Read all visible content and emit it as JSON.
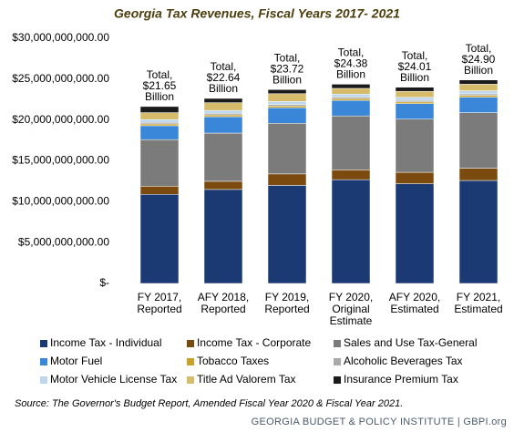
{
  "chart_data": {
    "type": "stacked-bar",
    "title": "Georgia Tax Revenues, Fiscal Years 2017- 2021",
    "categories": [
      [
        "FY 2017,",
        "Reported"
      ],
      [
        "AFY 2018,",
        "Reported"
      ],
      [
        "FY 2019,",
        "Reported"
      ],
      [
        "FY 2020,",
        "Original",
        "Estimate"
      ],
      [
        "AFY 2020,",
        "Estimated"
      ],
      [
        "FY 2021,",
        "Estimated"
      ]
    ],
    "series": [
      {
        "name": "Income Tax - Individual",
        "color": "#1b3a73",
        "values": [
          10900000000,
          11500000000,
          12000000000,
          12700000000,
          12200000000,
          12600000000
        ]
      },
      {
        "name": "Income Tax - Corporate",
        "color": "#7a4a0e",
        "values": [
          1000000000,
          1000000000,
          1400000000,
          1200000000,
          1400000000,
          1500000000
        ]
      },
      {
        "name": "Sales and Use Tax-General",
        "color": "#7b7b7b",
        "values": [
          5700000000,
          5900000000,
          6200000000,
          6600000000,
          6500000000,
          6800000000
        ]
      },
      {
        "name": "Motor Fuel",
        "color": "#3a86d8",
        "values": [
          1700000000,
          2000000000,
          1900000000,
          1900000000,
          1900000000,
          1900000000
        ]
      },
      {
        "name": "Tobacco Taxes",
        "color": "#c9a227",
        "values": [
          220000000,
          220000000,
          210000000,
          210000000,
          210000000,
          210000000
        ]
      },
      {
        "name": "Alcoholic Beverages Tax",
        "color": "#a9a9a9",
        "values": [
          190000000,
          200000000,
          200000000,
          200000000,
          200000000,
          200000000
        ]
      },
      {
        "name": "Motor Vehicle License Tax",
        "color": "#bdd7ee",
        "values": [
          340000000,
          350000000,
          360000000,
          360000000,
          360000000,
          370000000
        ]
      },
      {
        "name": "Title Ad Valorem Tax",
        "color": "#d6bb6a",
        "values": [
          850000000,
          950000000,
          950000000,
          700000000,
          740000000,
          800000000
        ]
      },
      {
        "name": "Insurance Premium Tax",
        "color": "#1a1a1a",
        "values": [
          750000000,
          520000000,
          500000000,
          510000000,
          500000000,
          520000000
        ]
      }
    ],
    "total_labels": [
      [
        "Total,",
        "$21.65",
        "Billion"
      ],
      [
        "Total,",
        "$22.64",
        "Billion"
      ],
      [
        "Total,",
        "$23.72",
        "Billion"
      ],
      [
        "Total,",
        "$24.38",
        "Billion"
      ],
      [
        "Total,",
        "$24.01",
        "Billion"
      ],
      [
        "Total,",
        "$24.90",
        "Billion"
      ]
    ],
    "ylim": [
      0,
      30000000000
    ],
    "yticks": [
      {
        "value": 0,
        "label": "$-"
      },
      {
        "value": 5000000000,
        "label": "$5,000,000,000.00"
      },
      {
        "value": 10000000000,
        "label": "$10,000,000,000.00"
      },
      {
        "value": 15000000000,
        "label": "$15,000,000,000.00"
      },
      {
        "value": 20000000000,
        "label": "$20,000,000,000.00"
      },
      {
        "value": 25000000000,
        "label": "$25,000,000,000.00"
      },
      {
        "value": 30000000000,
        "label": "$30,000,000,000.00"
      }
    ],
    "source": "Source: The Governor's Budget Report, Amended Fiscal Year 2020 & Fiscal Year 2021.",
    "footer": "GEORGIA BUDGET & POLICY INSTITUTE | GBPI.org"
  }
}
